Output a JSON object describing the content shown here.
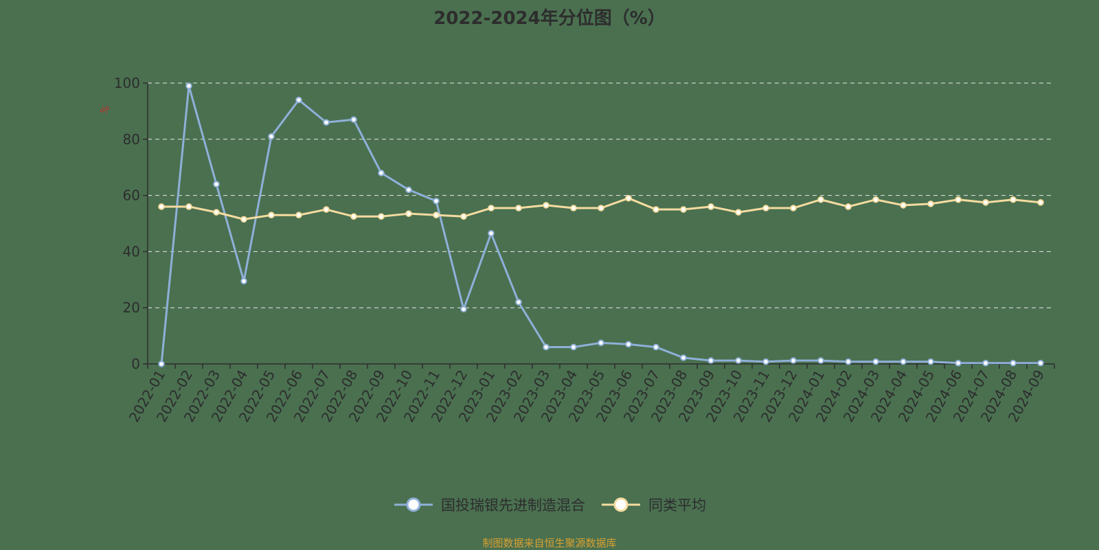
{
  "chart_data": {
    "type": "line",
    "title": "2022-2024年分位图（%）",
    "ylabel": "%",
    "xlabel": "",
    "ylim": [
      0,
      100
    ],
    "yticks": [
      0,
      20,
      40,
      60,
      80,
      100
    ],
    "grid": true,
    "legend_position": "bottom",
    "categories": [
      "2022-01",
      "2022-02",
      "2022-03",
      "2022-04",
      "2022-05",
      "2022-06",
      "2022-07",
      "2022-08",
      "2022-09",
      "2022-10",
      "2022-11",
      "2022-12",
      "2023-01",
      "2023-02",
      "2023-03",
      "2023-04",
      "2023-05",
      "2023-06",
      "2023-07",
      "2023-08",
      "2023-09",
      "2023-10",
      "2023-11",
      "2023-12",
      "2024-01",
      "2024-02",
      "2024-03",
      "2024-04",
      "2024-05",
      "2024-06",
      "2024-07",
      "2024-08",
      "2024-09"
    ],
    "series": [
      {
        "name": "国投瑞银先进制造混合",
        "color": "#8fb0d8",
        "values": [
          0,
          99,
          64,
          29.5,
          81,
          94,
          86,
          87,
          68,
          62,
          58,
          19.5,
          46.5,
          22,
          6,
          6,
          7.5,
          7,
          6,
          2.2,
          1.2,
          1.2,
          0.8,
          1.2,
          1.2,
          0.8,
          0.8,
          0.8,
          0.8,
          0.3,
          0.3,
          0.3,
          0.3
        ]
      },
      {
        "name": "同类平均",
        "color": "#f5dca0",
        "values": [
          56,
          56,
          54,
          51.5,
          53,
          53,
          55,
          52.5,
          52.5,
          53.5,
          53,
          52.5,
          55.5,
          55.5,
          56.5,
          55.5,
          55.5,
          59,
          55,
          55,
          56,
          54,
          55.5,
          55.5,
          58.5,
          56,
          58.5,
          56.5,
          57,
          58.5,
          57.5,
          58.5,
          57.5
        ]
      }
    ]
  },
  "source_note": "制图数据来自恒生聚源数据库"
}
